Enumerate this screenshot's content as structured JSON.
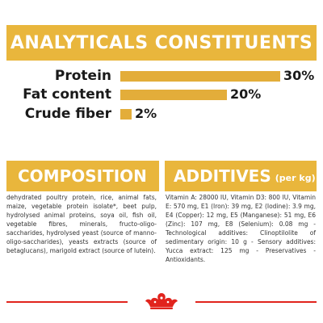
{
  "analytics": {
    "title": "ANALYTICALS CONSTITUENTS",
    "rows": [
      {
        "label": "Protein",
        "value": "30%",
        "percent": 30
      },
      {
        "label": "Fat content",
        "value": "20%",
        "percent": 20
      },
      {
        "label": "Crude fiber",
        "value": "2%",
        "percent": 2
      }
    ],
    "scale_max_percent": 30
  },
  "composition": {
    "title": "COMPOSITION",
    "text": "dehydrated poultry protein, rice, animal fats, maize, vegetable protein isolate*, beet pulp, hydrolysed animal proteins, soya oil, fish oil, vegetable fibres, minerals, fructo-oligo-saccharides, hydrolysed yeast (source of manno-oligo-saccharides), yeasts extracts (source of betaglucans), marigold extract (source of lutein)."
  },
  "additives": {
    "title": "ADDITIVES",
    "subtitle": "(per kg)",
    "text": "Vitamin A: 28000 IU, Vitamin D3: 800 IU, Vitamin E: 570 mg, E1 (Iron): 39 mg, E2 (Iodine): 3.9 mg, E4 (Copper): 12 mg, E5 (Manganese): 51 mg, E6 (Zinc): 107 mg, E8 (Selenium): 0.08 mg - Technological additives: Clinoptilolite of sedimentary origin: 10 g - Sensory additives: Yucca extract: 125 mg - Preservatives - Antioxidants."
  },
  "colors": {
    "banner": "#e9b63c",
    "bar": "#e3ad3a",
    "footer_red": "#e1241d"
  },
  "footer": {
    "logo_icon": "royal-canin-crown-icon"
  }
}
